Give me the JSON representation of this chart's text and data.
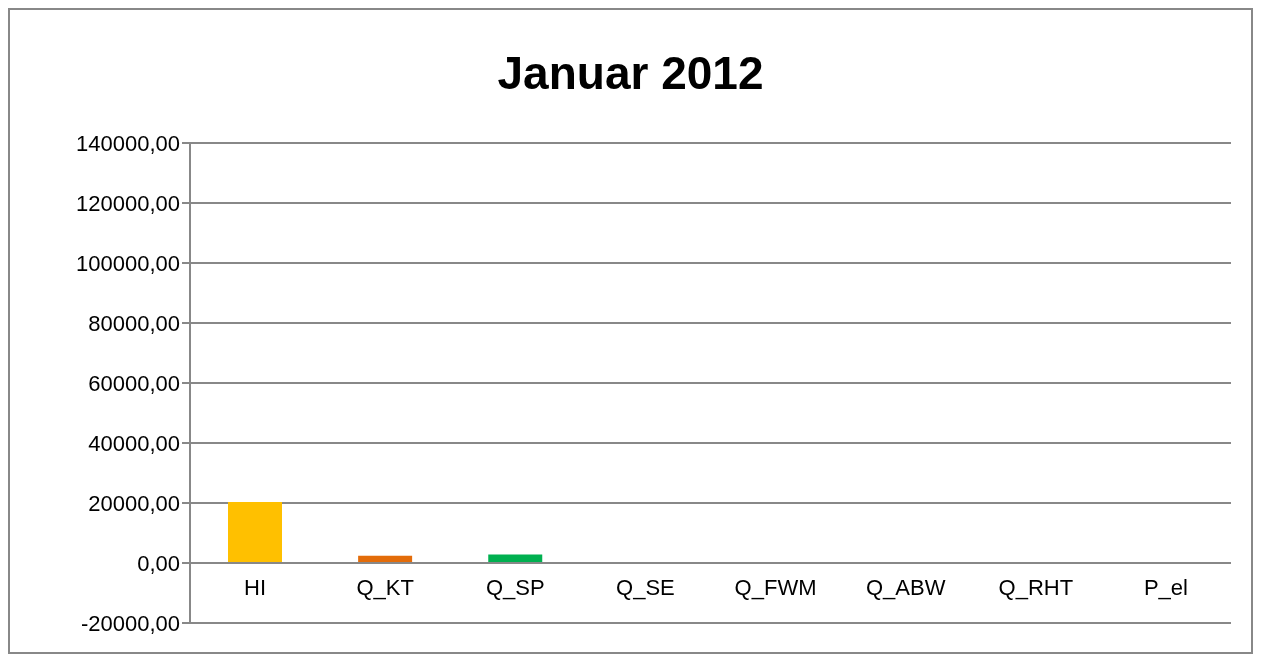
{
  "chart_data": {
    "type": "bar",
    "title": "Januar 2012",
    "categories": [
      "HI",
      "Q_KT",
      "Q_SP",
      "Q_SE",
      "Q_FWM",
      "Q_ABW",
      "Q_RHT",
      "P_el"
    ],
    "values": [
      20300,
      2400,
      2800,
      0,
      0,
      0,
      0,
      300
    ],
    "colors": [
      "#ffc000",
      "#e36c0a",
      "#00b050",
      "#4f81bd",
      "#8064a2",
      "#4bacc6",
      "#f79646",
      "#c0504d"
    ],
    "ylim": [
      -20000,
      140000
    ],
    "yticks": [
      {
        "value": -20000,
        "label": "-20000,00"
      },
      {
        "value": 0,
        "label": "0,00"
      },
      {
        "value": 20000,
        "label": "20000,00"
      },
      {
        "value": 40000,
        "label": "40000,00"
      },
      {
        "value": 60000,
        "label": "60000,00"
      },
      {
        "value": 80000,
        "label": "80000,00"
      },
      {
        "value": 100000,
        "label": "100000,00"
      },
      {
        "value": 120000,
        "label": "120000,00"
      },
      {
        "value": 140000,
        "label": "140000,00"
      }
    ],
    "grid": "y"
  }
}
